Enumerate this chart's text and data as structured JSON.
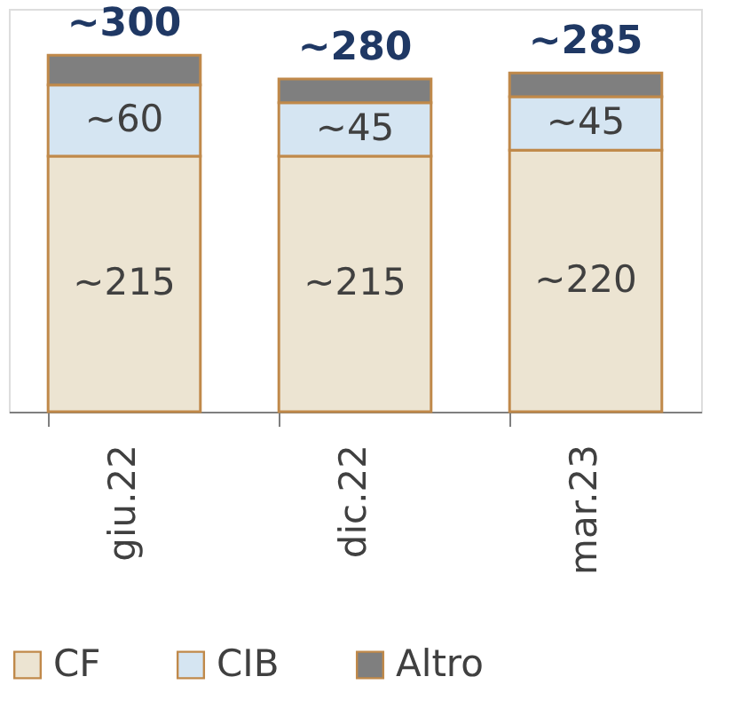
{
  "chart_data": {
    "type": "bar",
    "stacked": true,
    "categories": [
      "giu.22",
      "dic.22",
      "mar.23"
    ],
    "series": [
      {
        "name": "CF",
        "color": "#ece4d2",
        "values": [
          215,
          215,
          220
        ],
        "value_labels": [
          "~215",
          "~215",
          "~220"
        ]
      },
      {
        "name": "CIB",
        "color": "#d5e5f2",
        "values": [
          60,
          45,
          45
        ],
        "value_labels": [
          "~60",
          "~45",
          "~45"
        ]
      },
      {
        "name": "Altro",
        "color": "#7f7f7f",
        "values": [
          25,
          20,
          20
        ],
        "value_labels": [
          null,
          null,
          null
        ]
      }
    ],
    "totals": [
      "~300",
      "~280",
      "~285"
    ],
    "legend": "bottom",
    "tick_labels": "x",
    "grid": false
  }
}
